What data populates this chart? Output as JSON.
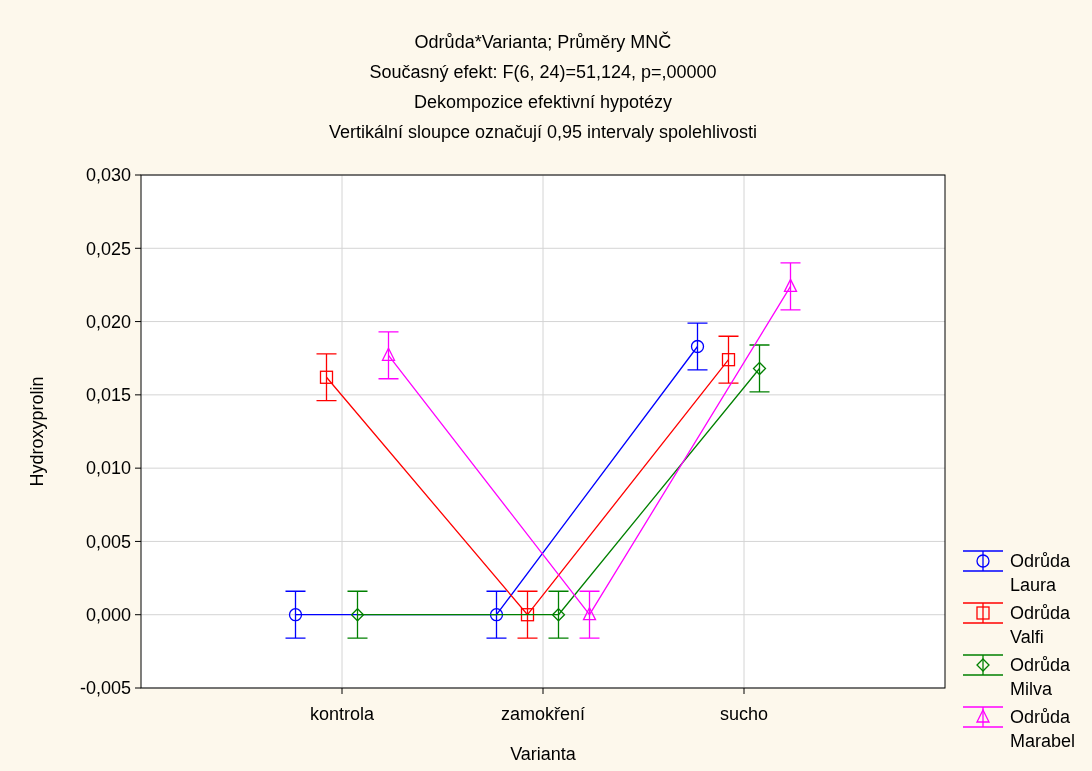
{
  "chart_data": {
    "type": "line",
    "title": "Odrůda*Varianta; Průměry MNČ",
    "subtitle": "Současný efekt: F(6, 24)=51,124, p=,00000",
    "annotations": [
      "Dekompozice efektivní hypotézy",
      "Vertikální sloupce označují 0,95 intervaly spolehlivosti"
    ],
    "xlabel": "Varianta",
    "ylabel": "Hydroxyprolin",
    "categories": [
      "kontrola",
      "zamokření",
      "sucho"
    ],
    "series": [
      {
        "name": "Odrůda Laura",
        "color": "#0000ff",
        "marker": "circle",
        "values": [
          0,
          0,
          0.0183
        ],
        "errors": [
          0.0016,
          0.0016,
          0.0016
        ]
      },
      {
        "name": "Odrůda Valfi",
        "color": "#ff0000",
        "marker": "square",
        "values": [
          0.0162,
          0,
          0.0174
        ],
        "errors": [
          0.0016,
          0.0016,
          0.0016
        ]
      },
      {
        "name": "Odrůda Milva",
        "color": "#008000",
        "marker": "diamond",
        "values": [
          0,
          0,
          0.0168
        ],
        "errors": [
          0.0016,
          0.0016,
          0.0016
        ]
      },
      {
        "name": "Odrůda Marabel",
        "color": "#ff00ff",
        "marker": "triangle",
        "values": [
          0.0177,
          0,
          0.0224
        ],
        "errors": [
          0.0016,
          0.0016,
          0.0016
        ]
      }
    ],
    "ylim": [
      -0.005,
      0.03
    ],
    "yticks": [
      {
        "value": -0.005,
        "label": "-0,005"
      },
      {
        "value": 0,
        "label": "0,000"
      },
      {
        "value": 0.005,
        "label": "0,005"
      },
      {
        "value": 0.01,
        "label": "0,010"
      },
      {
        "value": 0.015,
        "label": "0,015"
      },
      {
        "value": 0.02,
        "label": "0,020"
      },
      {
        "value": 0.025,
        "label": "0,025"
      },
      {
        "value": 0.03,
        "label": "0,030"
      }
    ],
    "grid": true,
    "legend": "bottom right",
    "line_style": "solid"
  }
}
